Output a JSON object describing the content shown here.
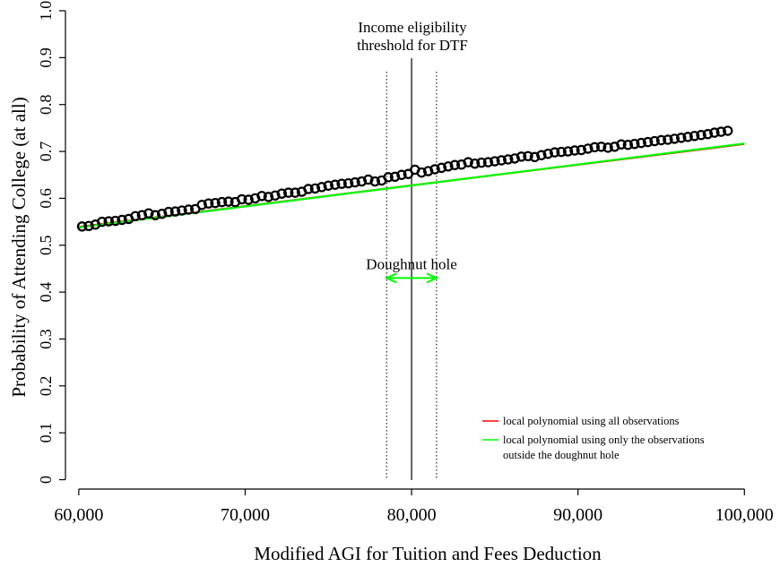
{
  "chart_data": {
    "type": "scatter",
    "xlabel": "Modified AGI for Tuition and Fees Deduction",
    "ylabel": "Probability of Attending College (at all)",
    "xlim": [
      59200,
      100900
    ],
    "ylim": [
      -0.02,
      1.0
    ],
    "x_ticks": [
      60000,
      70000,
      80000,
      90000,
      100000
    ],
    "x_tick_labels": [
      "60,000",
      "70,000",
      "80,000",
      "90,000",
      "100,000"
    ],
    "y_ticks": [
      0,
      0.1,
      0.2,
      0.3,
      0.4,
      0.5,
      0.6,
      0.7,
      0.8,
      0.9,
      1.0
    ],
    "y_tick_labels": [
      "0",
      "0.1",
      "0.2",
      "0.3",
      "0.4",
      "0.5",
      "0.6",
      "0.7",
      "0.8",
      "0.9",
      "1.0"
    ],
    "grid": false,
    "threshold": {
      "x": 80000,
      "label_lines": [
        "Income eligibility",
        "threshold for DTF"
      ]
    },
    "doughnut": {
      "lower": 78500,
      "upper": 81500,
      "y": 0.43,
      "label": "Doughnut hole",
      "color": "#00ff00"
    },
    "points": {
      "x": [
        60200,
        60600,
        61000,
        61400,
        61800,
        62200,
        62600,
        63000,
        63400,
        63800,
        64200,
        64600,
        65000,
        65400,
        65800,
        66200,
        66600,
        67000,
        67400,
        67800,
        68200,
        68600,
        69000,
        69400,
        69800,
        70200,
        70600,
        71000,
        71400,
        71800,
        72200,
        72600,
        73000,
        73400,
        73800,
        74200,
        74600,
        75000,
        75400,
        75800,
        76200,
        76600,
        77000,
        77400,
        77800,
        78200,
        78600,
        79000,
        79400,
        79800,
        80200,
        80600,
        81000,
        81400,
        81800,
        82200,
        82600,
        83000,
        83400,
        83800,
        84200,
        84600,
        85000,
        85400,
        85800,
        86200,
        86600,
        87000,
        87400,
        87800,
        88200,
        88600,
        89000,
        89400,
        89800,
        90200,
        90600,
        91000,
        91400,
        91800,
        92200,
        92600,
        93000,
        93400,
        93800,
        94200,
        94600,
        95000,
        95400,
        95800,
        96200,
        96600,
        97000,
        97400,
        97800,
        98200,
        98600,
        99000
      ],
      "y": [
        0.54,
        0.541,
        0.544,
        0.55,
        0.551,
        0.552,
        0.554,
        0.556,
        0.562,
        0.564,
        0.568,
        0.564,
        0.567,
        0.571,
        0.572,
        0.574,
        0.576,
        0.577,
        0.586,
        0.589,
        0.59,
        0.592,
        0.593,
        0.592,
        0.598,
        0.597,
        0.6,
        0.605,
        0.603,
        0.606,
        0.61,
        0.612,
        0.612,
        0.614,
        0.62,
        0.621,
        0.624,
        0.627,
        0.629,
        0.631,
        0.632,
        0.634,
        0.636,
        0.64,
        0.636,
        0.638,
        0.645,
        0.646,
        0.65,
        0.652,
        0.661,
        0.655,
        0.658,
        0.662,
        0.665,
        0.668,
        0.671,
        0.672,
        0.677,
        0.674,
        0.676,
        0.677,
        0.679,
        0.681,
        0.683,
        0.685,
        0.689,
        0.69,
        0.688,
        0.692,
        0.695,
        0.698,
        0.699,
        0.7,
        0.702,
        0.703,
        0.706,
        0.709,
        0.71,
        0.708,
        0.71,
        0.715,
        0.714,
        0.716,
        0.718,
        0.72,
        0.722,
        0.724,
        0.725,
        0.727,
        0.729,
        0.731,
        0.733,
        0.735,
        0.737,
        0.74,
        0.742,
        0.744
      ],
      "marker": "open-circle",
      "color": "#000000"
    },
    "series": [
      {
        "name": "local polynomial using all observations",
        "color": "#ff0000",
        "x": [
          60000,
          100000
        ],
        "y": [
          0.539,
          0.716
        ]
      },
      {
        "name_lines": [
          "local polynomial using only the observations",
          "outside the doughnut hole"
        ],
        "color": "#00ff00",
        "x": [
          60000,
          100000
        ],
        "y": [
          0.538,
          0.717
        ]
      }
    ],
    "legend_position": "bottom-right"
  }
}
